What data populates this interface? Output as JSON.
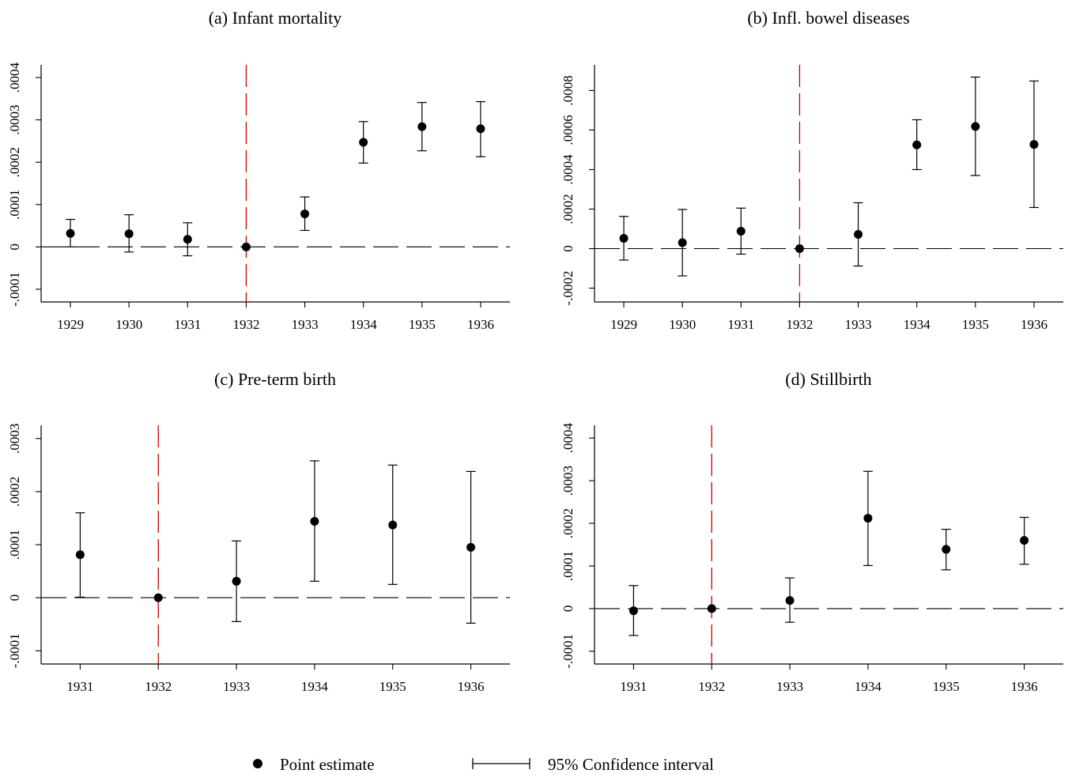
{
  "legend": {
    "point_label": "Point estimate",
    "ci_label": "95% Confidence interval"
  },
  "colors": {
    "marker": "#000000",
    "reference_line": "#cc0000",
    "zero_line": "#000000"
  },
  "chart_data": [
    {
      "type": "scatter",
      "title": "(a) Infant mortality",
      "x": [
        1929,
        1930,
        1931,
        1932,
        1933,
        1934,
        1935,
        1936
      ],
      "y": [
        3.2e-05,
        3.1e-05,
        1.8e-05,
        0.0,
        7.8e-05,
        0.000247,
        0.000284,
        0.000279
      ],
      "ci_low": [
        0.0,
        -1.2e-05,
        -2.1e-05,
        0.0,
        3.9e-05,
        0.000198,
        0.000227,
        0.000213
      ],
      "ci_high": [
        6.5e-05,
        7.6e-05,
        5.7e-05,
        0.0,
        0.000118,
        0.000296,
        0.000341,
        0.000343
      ],
      "ylim": [
        -0.00013,
        0.00043
      ],
      "yticks": [
        -0.0001,
        0,
        0.0001,
        0.0002,
        0.0003,
        0.0004
      ],
      "ytick_labels": [
        "-.0001",
        "0",
        ".0001",
        ".0002",
        ".0003",
        ".0004"
      ],
      "xlim": [
        1928.5,
        1936.5
      ],
      "xticks": [
        1929,
        1930,
        1931,
        1932,
        1933,
        1934,
        1935,
        1936
      ],
      "xtick_labels": [
        "1929",
        "1930",
        "1931",
        "1932",
        "1933",
        "1934",
        "1935",
        "1936"
      ],
      "reference_x": 1932,
      "xlabel": "",
      "ylabel": "",
      "grid": false
    },
    {
      "type": "scatter",
      "title": "(b) Infl. bowel diseases",
      "x": [
        1929,
        1930,
        1931,
        1932,
        1933,
        1934,
        1935,
        1936
      ],
      "y": [
        5.2e-05,
        3e-05,
        8.8e-05,
        0.0,
        7.2e-05,
        0.000525,
        0.000618,
        0.000527
      ],
      "ci_low": [
        -5.8e-05,
        -0.000138,
        -2.8e-05,
        0.0,
        -8.8e-05,
        0.0004,
        0.00037,
        0.000208
      ],
      "ci_high": [
        0.000163,
        0.000198,
        0.000205,
        0.0,
        0.000232,
        0.000652,
        0.000868,
        0.000848
      ],
      "ylim": [
        -0.00027,
        0.00093
      ],
      "yticks": [
        -0.0002,
        0,
        0.0002,
        0.0004,
        0.0006,
        0.0008
      ],
      "ytick_labels": [
        "-.0002",
        "0",
        ".0002",
        ".0004",
        ".0006",
        ".0008"
      ],
      "xlim": [
        1928.5,
        1936.5
      ],
      "xticks": [
        1929,
        1930,
        1931,
        1932,
        1933,
        1934,
        1935,
        1936
      ],
      "xtick_labels": [
        "1929",
        "1930",
        "1931",
        "1932",
        "1933",
        "1934",
        "1935",
        "1936"
      ],
      "reference_x": 1932,
      "xlabel": "",
      "ylabel": "",
      "grid": false
    },
    {
      "type": "scatter",
      "title": "(c) Pre-term birth",
      "x": [
        1931,
        1932,
        1933,
        1934,
        1935,
        1936
      ],
      "y": [
        8.1e-05,
        0.0,
        3.1e-05,
        0.000144,
        0.000137,
        9.5e-05
      ],
      "ci_low": [
        1e-06,
        0.0,
        -4.5e-05,
        3.1e-05,
        2.5e-05,
        -4.8e-05
      ],
      "ci_high": [
        0.00016,
        0.0,
        0.000107,
        0.000258,
        0.00025,
        0.000238
      ],
      "ylim": [
        -0.000125,
        0.000325
      ],
      "yticks": [
        -0.0001,
        0,
        0.0001,
        0.0002,
        0.0003
      ],
      "ytick_labels": [
        "-.0001",
        "0",
        ".0001",
        ".0002",
        ".0003"
      ],
      "xlim": [
        1930.5,
        1936.5
      ],
      "xticks": [
        1931,
        1932,
        1933,
        1934,
        1935,
        1936
      ],
      "xtick_labels": [
        "1931",
        "1932",
        "1933",
        "1934",
        "1935",
        "1936"
      ],
      "reference_x": 1932,
      "xlabel": "",
      "ylabel": "",
      "grid": false
    },
    {
      "type": "scatter",
      "title": "(d) Stillbirth",
      "x": [
        1931,
        1932,
        1933,
        1934,
        1935,
        1936
      ],
      "y": [
        -5e-06,
        0.0,
        1.9e-05,
        0.000212,
        0.000139,
        0.00016
      ],
      "ci_low": [
        -6.3e-05,
        0.0,
        -3.2e-05,
        0.000101,
        9.1e-05,
        0.000104
      ],
      "ci_high": [
        5.4e-05,
        0.0,
        7.2e-05,
        0.000322,
        0.000186,
        0.000214
      ],
      "ylim": [
        -0.00013,
        0.00043
      ],
      "yticks": [
        -0.0001,
        0,
        0.0001,
        0.0002,
        0.0003,
        0.0004
      ],
      "ytick_labels": [
        "-.0001",
        "0",
        ".0001",
        ".0002",
        ".0003",
        ".0004"
      ],
      "xlim": [
        1930.5,
        1936.5
      ],
      "xticks": [
        1931,
        1932,
        1933,
        1934,
        1935,
        1936
      ],
      "xtick_labels": [
        "1931",
        "1932",
        "1933",
        "1934",
        "1935",
        "1936"
      ],
      "reference_x": 1932,
      "xlabel": "",
      "ylabel": "",
      "grid": false
    }
  ]
}
